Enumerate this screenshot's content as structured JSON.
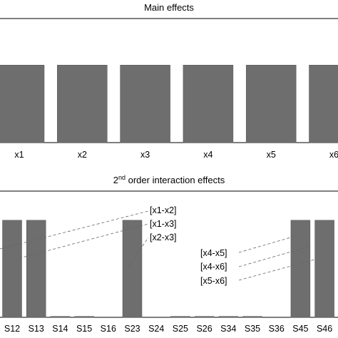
{
  "chart_data": [
    {
      "type": "bar",
      "title": "Main effects",
      "categories": [
        "x1",
        "x2",
        "x3",
        "x4",
        "x5",
        "x6"
      ],
      "values": [
        1,
        1,
        1,
        1,
        1,
        1
      ],
      "ylim": [
        0,
        1.6
      ]
    },
    {
      "type": "bar",
      "title_prefix": "2",
      "title_sup": "nd",
      "title_suffix": " order interaction effects",
      "categories": [
        "S12",
        "S13",
        "S14",
        "S15",
        "S16",
        "S23",
        "S24",
        "S25",
        "S26",
        "S34",
        "S35",
        "S36",
        "S45",
        "S46"
      ],
      "values": [
        1,
        1,
        0.01,
        0.01,
        0,
        1,
        0,
        0.01,
        0.01,
        0.01,
        0.01,
        0,
        1,
        1
      ],
      "ylim": [
        0,
        1.3
      ],
      "annotations": [
        {
          "label": "[x1-x2]",
          "target": "S12"
        },
        {
          "label": "[x1-x3]",
          "target": "S13"
        },
        {
          "label": "[x2-x3]",
          "target": "S23"
        },
        {
          "label": "[x4-x5]",
          "target": "S45"
        },
        {
          "label": "[x4-x6]",
          "target": "S46"
        },
        {
          "label": "[x5-x6]",
          "target": "S46"
        }
      ]
    }
  ]
}
